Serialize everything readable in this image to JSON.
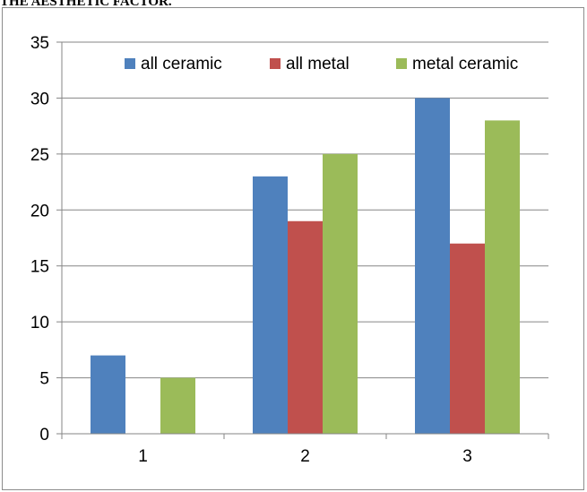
{
  "page": {
    "caption": "THE AESTHETIC FACTOR."
  },
  "chart_data": {
    "type": "bar",
    "categories": [
      "1",
      "2",
      "3"
    ],
    "series": [
      {
        "name": "all ceramic",
        "values": [
          7,
          23,
          30
        ],
        "color": "#4f81bd"
      },
      {
        "name": "all metal",
        "values": [
          0,
          19,
          17
        ],
        "color": "#c0504d"
      },
      {
        "name": "metal ceramic",
        "values": [
          5,
          25,
          28
        ],
        "color": "#9bbb59"
      }
    ],
    "ylim": [
      0,
      35
    ],
    "yticks": [
      0,
      5,
      10,
      15,
      20,
      25,
      30,
      35
    ],
    "grid": true,
    "legend_position": "top-right",
    "title": "",
    "xlabel": "",
    "ylabel": ""
  }
}
